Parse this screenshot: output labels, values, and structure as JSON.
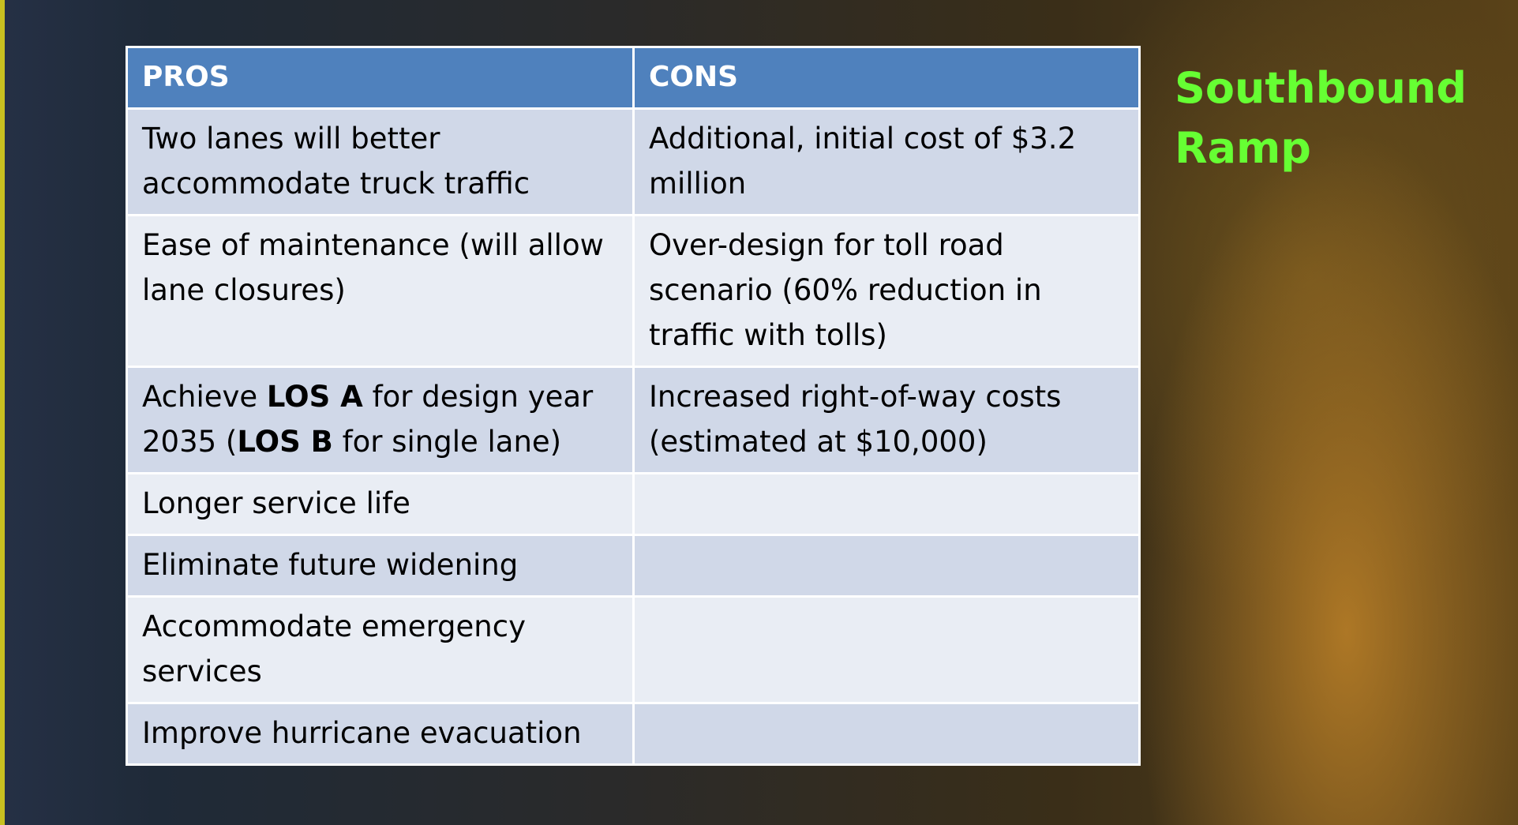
{
  "title": "Southbound Ramp",
  "table": {
    "header": [
      "PROS",
      "CONS"
    ],
    "rows": [
      [
        "Two lanes will better accommodate truck traffic",
        "Additional, initial cost of $3.2 million"
      ],
      [
        "Ease of maintenance (will allow lane closures)",
        "Over-design for toll road scenario (60% reduction in traffic with tolls)"
      ],
      [
        [
          {
            "text": "Achieve "
          },
          {
            "text": "LOS A",
            "bold": true
          },
          {
            "text": " for design year 2035 ("
          },
          {
            "text": "LOS B",
            "bold": true
          },
          {
            "text": " for single lane)"
          }
        ],
        "Increased right-of-way costs (estimated at $10,000)"
      ],
      [
        "Longer service life",
        null
      ],
      [
        "Eliminate future widening",
        null
      ],
      [
        "Accommodate emergency services",
        null
      ],
      [
        "Improve hurricane evacuation",
        null
      ]
    ]
  }
}
